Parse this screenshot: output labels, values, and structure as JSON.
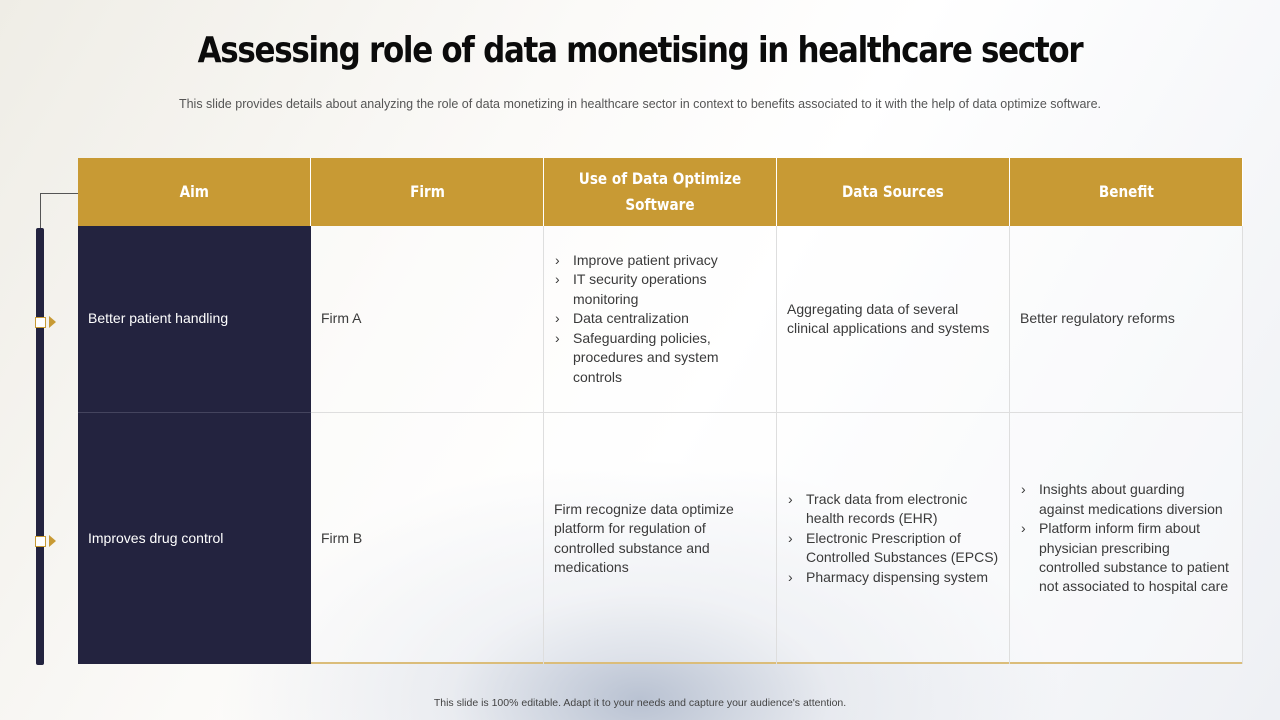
{
  "slide": {
    "title": "Assessing role of data monetising in healthcare sector",
    "subtitle": "This slide provides details about analyzing the role of data monetizing in healthcare sector in context to benefits associated to it with the help of data optimize software.",
    "footer": "This slide is 100% editable. Adapt it to your needs and capture your audience's attention."
  },
  "colors": {
    "header_gold": "#c89a34",
    "navy": "#23233f"
  },
  "table": {
    "headers": [
      "Aim",
      "Firm",
      "Use of Data Optimize Software",
      "Data Sources",
      "Benefit"
    ],
    "rows": [
      {
        "aim": "Better patient handling",
        "firm": "Firm A",
        "software": [
          "Improve patient privacy",
          "IT security operations monitoring",
          "Data centralization",
          "Safeguarding policies, procedures and system controls"
        ],
        "sources": "Aggregating data of several clinical applications and systems",
        "benefit": "Better regulatory reforms"
      },
      {
        "aim": "Improves drug control",
        "firm": "Firm B",
        "software": "Firm recognize data optimize platform for regulation of controlled substance and medications",
        "sources": [
          "Track data from electronic health records (EHR)",
          "Electronic Prescription of Controlled Substances (EPCS)",
          "Pharmacy dispensing system"
        ],
        "benefit": [
          "Insights about guarding against medications diversion",
          "Platform inform firm  about physician prescribing controlled substance to patient not associated to hospital care"
        ]
      }
    ]
  }
}
